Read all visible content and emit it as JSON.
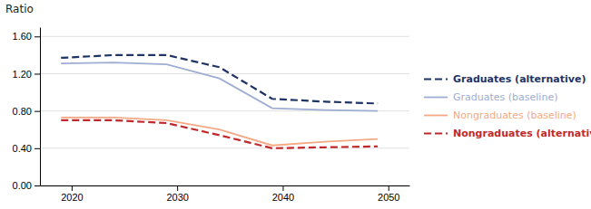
{
  "chart_data": {
    "type": "line",
    "ylabel": "Ratio",
    "x": [
      2019,
      2024,
      2029,
      2034,
      2039,
      2044,
      2049
    ],
    "series": [
      {
        "name": "Graduates (alternative)",
        "color": "#1f3464",
        "line_style": "dashed",
        "values": [
          1.37,
          1.4,
          1.4,
          1.27,
          0.93,
          0.9,
          0.88
        ]
      },
      {
        "name": "Graduates (baseline)",
        "color": "#9eadd1",
        "line_style": "solid",
        "values": [
          1.31,
          1.32,
          1.3,
          1.15,
          0.83,
          0.81,
          0.8
        ]
      },
      {
        "name": "Nongraduates (baseline)",
        "color": "#f4a984",
        "line_style": "solid",
        "values": [
          0.73,
          0.73,
          0.7,
          0.6,
          0.43,
          0.47,
          0.5
        ]
      },
      {
        "name": "Nongraduates (alternative)",
        "color": "#c0292b",
        "line_style": "dashed",
        "values": [
          0.7,
          0.7,
          0.67,
          0.54,
          0.4,
          0.41,
          0.42
        ]
      }
    ],
    "xlim": [
      2017,
      2052
    ],
    "xticks": [
      2020,
      2030,
      2040,
      2050
    ],
    "ylim": [
      0.0,
      1.7
    ],
    "yticks": [
      {
        "value": 0.0,
        "label": "0.00"
      },
      {
        "value": 0.4,
        "label": "0.40"
      },
      {
        "value": 0.8,
        "label": "0.80"
      },
      {
        "value": 1.2,
        "label": "1.20"
      },
      {
        "value": 1.6,
        "label": "1.60"
      }
    ],
    "grid": true,
    "legend": "right"
  }
}
